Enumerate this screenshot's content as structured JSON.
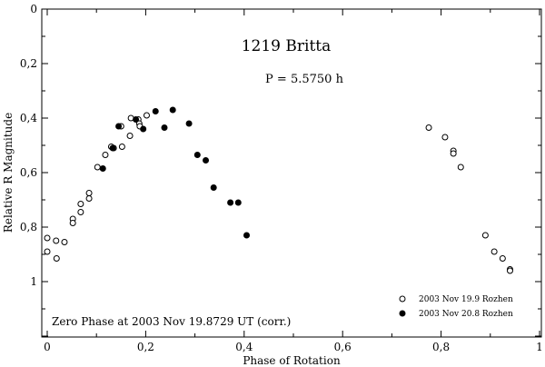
{
  "chart_data": {
    "type": "scatter",
    "title": "1219 Britta",
    "period_label": "P = 5.5750 h",
    "xlabel": "Phase of Rotation",
    "ylabel": "Relative R Magnitude",
    "annotation": "Zero Phase at 2003 Nov 19.8729 UT (corr.)",
    "xlim": [
      0,
      1
    ],
    "ylim": [
      0,
      1.2
    ],
    "y_inverted": true,
    "x_ticks": [
      "0",
      "0,2",
      "0,4",
      "0,6",
      "0,8",
      "1"
    ],
    "y_ticks": [
      "0",
      "0,2",
      "0,4",
      "0,6",
      "0,8",
      "1"
    ],
    "grid": false,
    "legend_position": "bottom-right",
    "series": [
      {
        "name": "2003 Nov 19.9 Rozhen",
        "marker": "open-circle",
        "points": [
          [
            0.0,
            0.84
          ],
          [
            0.0,
            0.89
          ],
          [
            0.018,
            0.85
          ],
          [
            0.019,
            0.915
          ],
          [
            0.035,
            0.855
          ],
          [
            0.052,
            0.77
          ],
          [
            0.052,
            0.785
          ],
          [
            0.068,
            0.715
          ],
          [
            0.068,
            0.745
          ],
          [
            0.085,
            0.675
          ],
          [
            0.085,
            0.695
          ],
          [
            0.102,
            0.58
          ],
          [
            0.118,
            0.535
          ],
          [
            0.13,
            0.505
          ],
          [
            0.135,
            0.51
          ],
          [
            0.15,
            0.43
          ],
          [
            0.152,
            0.505
          ],
          [
            0.168,
            0.465
          ],
          [
            0.17,
            0.4
          ],
          [
            0.185,
            0.405
          ],
          [
            0.187,
            0.42
          ],
          [
            0.188,
            0.43
          ],
          [
            0.202,
            0.39
          ],
          [
            0.775,
            0.435
          ],
          [
            0.808,
            0.47
          ],
          [
            0.825,
            0.52
          ],
          [
            0.825,
            0.53
          ],
          [
            0.84,
            0.58
          ],
          [
            0.89,
            0.83
          ],
          [
            0.908,
            0.89
          ],
          [
            0.925,
            0.915
          ],
          [
            0.94,
            0.955
          ],
          [
            0.94,
            0.96
          ]
        ]
      },
      {
        "name": "2003 Nov 20.8 Rozhen",
        "marker": "filled-circle",
        "points": [
          [
            0.113,
            0.585
          ],
          [
            0.133,
            0.51
          ],
          [
            0.145,
            0.43
          ],
          [
            0.18,
            0.405
          ],
          [
            0.195,
            0.44
          ],
          [
            0.22,
            0.375
          ],
          [
            0.238,
            0.435
          ],
          [
            0.255,
            0.37
          ],
          [
            0.288,
            0.42
          ],
          [
            0.305,
            0.535
          ],
          [
            0.322,
            0.555
          ],
          [
            0.338,
            0.655
          ],
          [
            0.372,
            0.71
          ],
          [
            0.388,
            0.71
          ],
          [
            0.405,
            0.83
          ]
        ]
      }
    ]
  }
}
